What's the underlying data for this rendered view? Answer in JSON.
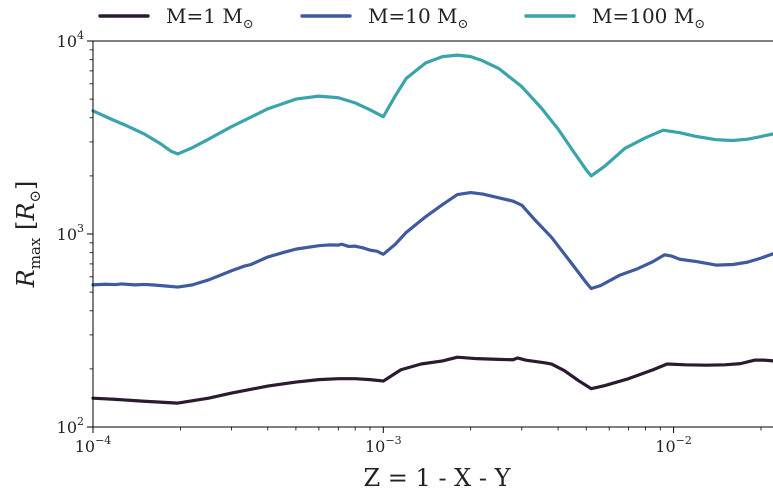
{
  "chart_data": {
    "type": "line",
    "xlabel": "Z = 1 - X - Y",
    "ylabel": "R_max [R_⊙]",
    "x_scale": "log",
    "y_scale": "log",
    "xlim": [
      0.0001,
      0.022
    ],
    "ylim": [
      100,
      10000
    ],
    "grid": false,
    "legend_position": "top",
    "x_ticks": [
      {
        "value": 0.0001,
        "base": "10",
        "exp": "−4"
      },
      {
        "value": 0.001,
        "base": "10",
        "exp": "−3"
      },
      {
        "value": 0.01,
        "base": "10",
        "exp": "−2"
      }
    ],
    "y_ticks": [
      {
        "value": 100,
        "base": "10",
        "exp": "2"
      },
      {
        "value": 1000,
        "base": "10",
        "exp": "3"
      },
      {
        "value": 10000,
        "base": "10",
        "exp": "4"
      }
    ],
    "series": [
      {
        "name": "M=1 M⊙",
        "label_prefix": "M=1 M",
        "color": "#2b1a30",
        "points": [
          [
            0.0001,
            141
          ],
          [
            0.00012,
            139
          ],
          [
            0.00015,
            136
          ],
          [
            0.000196,
            133
          ],
          [
            0.00025,
            141
          ],
          [
            0.0003,
            150
          ],
          [
            0.0004,
            163
          ],
          [
            0.0005,
            171
          ],
          [
            0.0006,
            176
          ],
          [
            0.0007,
            178
          ],
          [
            0.0008,
            178
          ],
          [
            0.0009,
            176
          ],
          [
            0.001,
            173
          ],
          [
            0.00115,
            198
          ],
          [
            0.00135,
            212
          ],
          [
            0.0016,
            220
          ],
          [
            0.0018,
            230
          ],
          [
            0.0021,
            226
          ],
          [
            0.0025,
            224
          ],
          [
            0.0028,
            223
          ],
          [
            0.0029,
            228
          ],
          [
            0.0031,
            222
          ],
          [
            0.0036,
            215
          ],
          [
            0.0038,
            212
          ],
          [
            0.0042,
            196
          ],
          [
            0.0047,
            174
          ],
          [
            0.0052,
            158
          ],
          [
            0.0058,
            164
          ],
          [
            0.007,
            178
          ],
          [
            0.0085,
            198
          ],
          [
            0.0095,
            212
          ],
          [
            0.011,
            210
          ],
          [
            0.013,
            209
          ],
          [
            0.015,
            210
          ],
          [
            0.017,
            213
          ],
          [
            0.019,
            222
          ],
          [
            0.0205,
            222
          ],
          [
            0.022,
            220
          ]
        ]
      },
      {
        "name": "M=10 M⊙",
        "label_prefix": "M=10 M",
        "color": "#3f5a9e",
        "points": [
          [
            0.0001,
            545
          ],
          [
            0.00011,
            549
          ],
          [
            0.00012,
            547
          ],
          [
            0.000125,
            551
          ],
          [
            0.00014,
            545
          ],
          [
            0.00015,
            548
          ],
          [
            0.00016,
            545
          ],
          [
            0.00017,
            541
          ],
          [
            0.000196,
            531
          ],
          [
            0.00022,
            545
          ],
          [
            0.00025,
            578
          ],
          [
            0.0003,
            645
          ],
          [
            0.00033,
            680
          ],
          [
            0.00035,
            695
          ],
          [
            0.0004,
            760
          ],
          [
            0.00045,
            800
          ],
          [
            0.0005,
            835
          ],
          [
            0.0006,
            870
          ],
          [
            0.00065,
            878
          ],
          [
            0.0007,
            876
          ],
          [
            0.00072,
            885
          ],
          [
            0.00076,
            862
          ],
          [
            0.0008,
            865
          ],
          [
            0.00085,
            848
          ],
          [
            0.0009,
            825
          ],
          [
            0.00095,
            815
          ],
          [
            0.001,
            785
          ],
          [
            0.0011,
            885
          ],
          [
            0.0012,
            1020
          ],
          [
            0.0014,
            1230
          ],
          [
            0.0016,
            1420
          ],
          [
            0.0018,
            1600
          ],
          [
            0.002,
            1640
          ],
          [
            0.0022,
            1610
          ],
          [
            0.0025,
            1540
          ],
          [
            0.0028,
            1480
          ],
          [
            0.003,
            1410
          ],
          [
            0.0033,
            1200
          ],
          [
            0.0038,
            960
          ],
          [
            0.0045,
            690
          ],
          [
            0.005,
            560
          ],
          [
            0.0052,
            522
          ],
          [
            0.0056,
            540
          ],
          [
            0.0065,
            610
          ],
          [
            0.0075,
            660
          ],
          [
            0.0085,
            720
          ],
          [
            0.0093,
            780
          ],
          [
            0.0098,
            770
          ],
          [
            0.0105,
            740
          ],
          [
            0.012,
            720
          ],
          [
            0.014,
            690
          ],
          [
            0.016,
            695
          ],
          [
            0.018,
            715
          ],
          [
            0.02,
            750
          ],
          [
            0.022,
            790
          ]
        ]
      },
      {
        "name": "M=100 M⊙",
        "label_prefix": "M=100 M",
        "color": "#3aa3ac",
        "points": [
          [
            0.0001,
            4350
          ],
          [
            0.000115,
            3950
          ],
          [
            0.00013,
            3650
          ],
          [
            0.00015,
            3300
          ],
          [
            0.00017,
            2950
          ],
          [
            0.000186,
            2680
          ],
          [
            0.000196,
            2600
          ],
          [
            0.00022,
            2800
          ],
          [
            0.00025,
            3100
          ],
          [
            0.0003,
            3600
          ],
          [
            0.0004,
            4450
          ],
          [
            0.0005,
            5000
          ],
          [
            0.0006,
            5180
          ],
          [
            0.0007,
            5080
          ],
          [
            0.0008,
            4780
          ],
          [
            0.0009,
            4400
          ],
          [
            0.001,
            4050
          ],
          [
            0.0011,
            5200
          ],
          [
            0.0012,
            6400
          ],
          [
            0.0014,
            7700
          ],
          [
            0.0016,
            8300
          ],
          [
            0.0018,
            8450
          ],
          [
            0.002,
            8300
          ],
          [
            0.0022,
            7900
          ],
          [
            0.0025,
            7200
          ],
          [
            0.003,
            5800
          ],
          [
            0.0035,
            4500
          ],
          [
            0.004,
            3500
          ],
          [
            0.0045,
            2700
          ],
          [
            0.005,
            2150
          ],
          [
            0.0052,
            2000
          ],
          [
            0.0058,
            2250
          ],
          [
            0.0068,
            2780
          ],
          [
            0.008,
            3150
          ],
          [
            0.0092,
            3450
          ],
          [
            0.0105,
            3350
          ],
          [
            0.012,
            3200
          ],
          [
            0.014,
            3080
          ],
          [
            0.016,
            3050
          ],
          [
            0.018,
            3100
          ],
          [
            0.02,
            3200
          ],
          [
            0.022,
            3300
          ]
        ]
      }
    ]
  }
}
